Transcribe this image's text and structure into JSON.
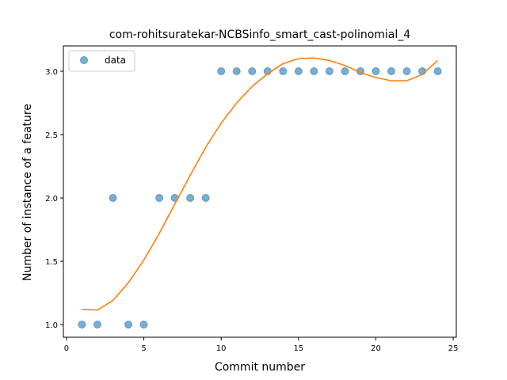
{
  "chart_data": {
    "type": "scatter",
    "title": "com-rohitsuratekar-NCBSinfo_smart_cast-polinomial_4",
    "xlabel": "Commit number",
    "ylabel": "Number of instance of a feature",
    "xlim": [
      -0.2,
      25.2
    ],
    "ylim": [
      0.9,
      3.2
    ],
    "xticks": [
      0,
      5,
      10,
      15,
      20,
      25
    ],
    "yticks": [
      1.0,
      1.5,
      2.0,
      2.5,
      3.0
    ],
    "xtick_labels": [
      "0",
      "5",
      "10",
      "15",
      "20",
      "25"
    ],
    "ytick_labels": [
      "1.0",
      "1.5",
      "2.0",
      "2.5",
      "3.0"
    ],
    "grid": false,
    "legend_position": "top-left",
    "series": [
      {
        "name": "data",
        "kind": "scatter",
        "color": "#1f77b4",
        "x": [
          1,
          2,
          3,
          4,
          5,
          6,
          7,
          8,
          9,
          10,
          11,
          12,
          13,
          14,
          15,
          16,
          17,
          18,
          19,
          20,
          21,
          22,
          23,
          24
        ],
        "y": [
          1,
          1,
          2,
          1,
          1,
          2,
          2,
          2,
          2,
          3,
          3,
          3,
          3,
          3,
          3,
          3,
          3,
          3,
          3,
          3,
          3,
          3,
          3,
          3
        ]
      },
      {
        "kind": "line",
        "color": "#ff7f0e",
        "x": [
          1,
          2,
          3,
          4,
          5,
          6,
          7,
          8,
          9,
          10,
          11,
          12,
          13,
          14,
          15,
          16,
          17,
          18,
          19,
          20,
          21,
          22,
          23,
          24
        ],
        "y": [
          1.12,
          1.115,
          1.19,
          1.33,
          1.51,
          1.72,
          1.95,
          2.18,
          2.4,
          2.59,
          2.75,
          2.88,
          2.98,
          3.06,
          3.1,
          3.105,
          3.085,
          3.045,
          2.99,
          2.95,
          2.925,
          2.925,
          2.975,
          3.085
        ]
      }
    ]
  }
}
